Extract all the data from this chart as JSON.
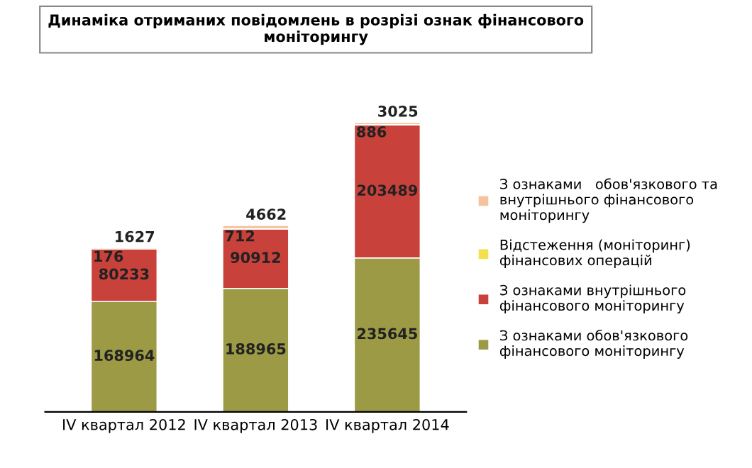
{
  "chart_data": {
    "type": "bar",
    "stacked": true,
    "data_labels": true,
    "legend": "right",
    "title": "Динаміка отриманих повідомлень в розрізі ознак фінансового\nмоніторингу",
    "categories": [
      "IV квартал 2012",
      "IV квартал 2013",
      "IV квартал 2014"
    ],
    "series": [
      {
        "name": "З ознаками обов'язкового\nфінансового моніторингу",
        "color": "#9c9a45",
        "values": [
          168964,
          188965,
          235645
        ]
      },
      {
        "name": "З ознаками внутрішнього\nфінансового моніторингу",
        "color": "#c8413a",
        "values": [
          80233,
          90912,
          203489
        ]
      },
      {
        "name": "Відстеження (моніторинг)\nфінансових операцій",
        "color": "#f2e14a",
        "values": [
          176,
          712,
          886
        ]
      },
      {
        "name": "З ознаками   обов'язкового та\nвнутрішнього фінансового\nмоніторингу",
        "color": "#f4c29c",
        "values": [
          1627,
          4662,
          3025
        ]
      }
    ]
  }
}
